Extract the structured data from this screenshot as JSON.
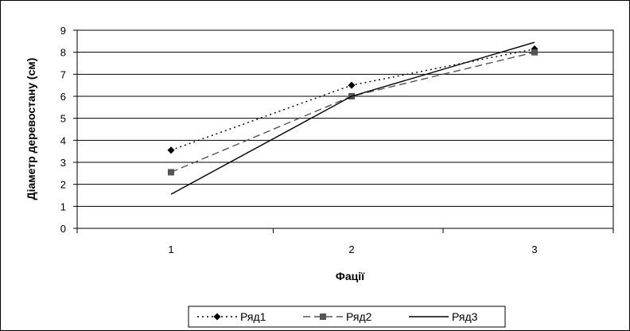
{
  "chart_data": {
    "type": "line",
    "categories": [
      "1",
      "2",
      "3"
    ],
    "xlabel": "Фації",
    "ylabel": "Діаметр деревостану (см)",
    "ylim": [
      0,
      9
    ],
    "yticks": [
      0,
      1,
      2,
      3,
      4,
      5,
      6,
      7,
      8,
      9
    ],
    "grid": "horizontal",
    "legend_position": "bottom",
    "series": [
      {
        "name": "Ряд1",
        "values": [
          3.55,
          6.5,
          8.15
        ],
        "line_style": "dotted",
        "marker": "diamond",
        "color": "#000000"
      },
      {
        "name": "Ряд2",
        "values": [
          2.55,
          6.0,
          8.0
        ],
        "line_style": "dashed",
        "marker": "square",
        "color": "#555555"
      },
      {
        "name": "Ряд3",
        "values": [
          1.55,
          6.0,
          8.45
        ],
        "line_style": "solid",
        "marker": "none",
        "color": "#000000"
      }
    ]
  }
}
